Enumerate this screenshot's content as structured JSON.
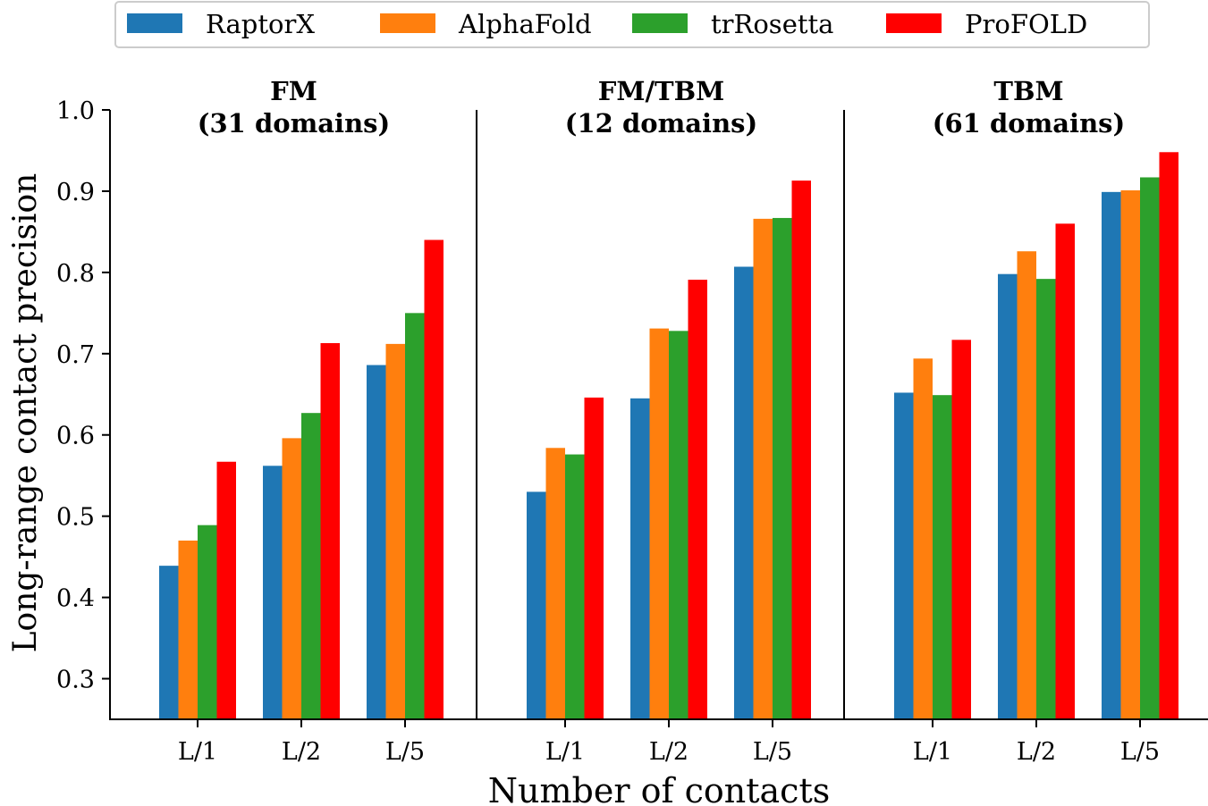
{
  "chart_data": {
    "type": "bar",
    "xlabel": "Number of contacts",
    "ylabel": "Long-range contact precision",
    "ylim": [
      0.25,
      1.0
    ],
    "yticks": [
      0.3,
      0.4,
      0.5,
      0.6,
      0.7,
      0.8,
      0.9,
      1.0
    ],
    "ytick_labels": [
      "0.3",
      "0.4",
      "0.5",
      "0.6",
      "0.7",
      "0.8",
      "0.9",
      "1.0"
    ],
    "categories": [
      "L/1",
      "L/2",
      "L/5"
    ],
    "legend_position": "top-center",
    "legend": [
      {
        "name": "RaptorX",
        "color": "#1f77b4"
      },
      {
        "name": "AlphaFold",
        "color": "#ff7f0e"
      },
      {
        "name": "trRosetta",
        "color": "#2ca02c"
      },
      {
        "name": "ProFOLD",
        "color": "#ff0000"
      }
    ],
    "panels": [
      {
        "title_line1": "FM",
        "title_line2": "(31 domains)",
        "series": [
          {
            "name": "RaptorX",
            "values": [
              0.439,
              0.562,
              0.686
            ]
          },
          {
            "name": "AlphaFold",
            "values": [
              0.47,
              0.596,
              0.712
            ]
          },
          {
            "name": "trRosetta",
            "values": [
              0.489,
              0.627,
              0.75
            ]
          },
          {
            "name": "ProFOLD",
            "values": [
              0.567,
              0.713,
              0.84
            ]
          }
        ]
      },
      {
        "title_line1": "FM/TBM",
        "title_line2": "(12 domains)",
        "series": [
          {
            "name": "RaptorX",
            "values": [
              0.53,
              0.645,
              0.807
            ]
          },
          {
            "name": "AlphaFold",
            "values": [
              0.584,
              0.731,
              0.866
            ]
          },
          {
            "name": "trRosetta",
            "values": [
              0.576,
              0.728,
              0.867
            ]
          },
          {
            "name": "ProFOLD",
            "values": [
              0.646,
              0.791,
              0.913
            ]
          }
        ]
      },
      {
        "title_line1": "TBM",
        "title_line2": "(61 domains)",
        "series": [
          {
            "name": "RaptorX",
            "values": [
              0.652,
              0.798,
              0.899
            ]
          },
          {
            "name": "AlphaFold",
            "values": [
              0.694,
              0.826,
              0.901
            ]
          },
          {
            "name": "trRosetta",
            "values": [
              0.649,
              0.792,
              0.917
            ]
          },
          {
            "name": "ProFOLD",
            "values": [
              0.717,
              0.86,
              0.948
            ]
          }
        ]
      }
    ]
  }
}
